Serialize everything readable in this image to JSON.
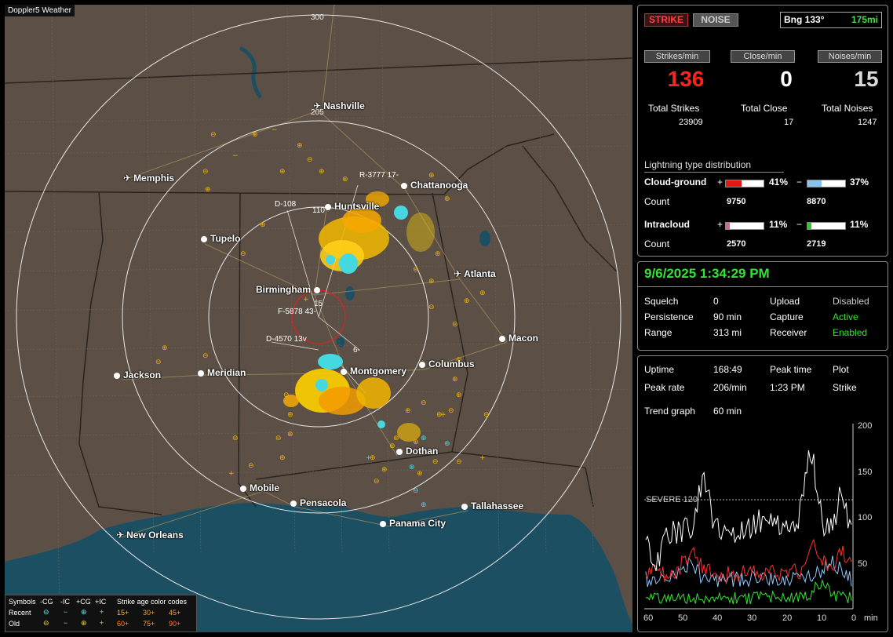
{
  "map": {
    "title": "Doppler5 Weather",
    "ring_labels": [
      "300",
      "205",
      "15"
    ],
    "cities": [
      {
        "name": "Nashville",
        "type": "airport"
      },
      {
        "name": "Memphis",
        "type": "airport"
      },
      {
        "name": "Huntsville",
        "type": "city"
      },
      {
        "name": "Chattanooga",
        "type": "city"
      },
      {
        "name": "Tupelo",
        "type": "city"
      },
      {
        "name": "Atlanta",
        "type": "airport"
      },
      {
        "name": "Birmingham",
        "type": "city"
      },
      {
        "name": "Macon",
        "type": "city"
      },
      {
        "name": "Columbus",
        "type": "city"
      },
      {
        "name": "Jackson",
        "type": "city"
      },
      {
        "name": "Meridian",
        "type": "city"
      },
      {
        "name": "Montgomery",
        "type": "city"
      },
      {
        "name": "Dothan",
        "type": "city"
      },
      {
        "name": "Mobile",
        "type": "city"
      },
      {
        "name": "Pensacola",
        "type": "city"
      },
      {
        "name": "Tallahassee",
        "type": "city"
      },
      {
        "name": "Panama City",
        "type": "city"
      },
      {
        "name": "New Orleans",
        "type": "airport"
      }
    ],
    "stations": [
      "R-3777 17-",
      "D-108",
      "110",
      "F-5878 43-",
      "D-4570 13v",
      "6-"
    ],
    "legend": {
      "title_symbols": "Symbols",
      "cols": [
        "-CG",
        "-IC",
        "+CG",
        "+IC"
      ],
      "rows": [
        "Recent",
        "Old"
      ],
      "recent_symbols": [
        "⊖",
        "−",
        "⊕",
        "+"
      ],
      "old_symbols": [
        "⊖",
        "−",
        "⊕",
        "+"
      ],
      "age_title": "Strike age color codes",
      "recent_ages": [
        "15+",
        "30+",
        "45+"
      ],
      "old_ages": [
        "60+",
        "75+",
        "90+"
      ]
    }
  },
  "status": {
    "strike_label": "STRIKE",
    "noise_label": "NOISE",
    "bearing": "Bng 133°",
    "distance": "175mi",
    "strikes_min_label": "Strikes/min",
    "close_min_label": "Close/min",
    "noises_min_label": "Noises/min",
    "strikes_min": "136",
    "close_min": "0",
    "noises_min": "15",
    "total_strikes_label": "Total Strikes",
    "total_close_label": "Total Close",
    "total_noises_label": "Total Noises",
    "total_strikes": "23909",
    "total_close": "17",
    "total_noises": "1247",
    "dist_title": "Lightning type distribution",
    "cg_label": "Cloud-ground",
    "ic_label": "Intracloud",
    "count_label": "Count",
    "plus": "+",
    "minus": "−",
    "cg_pos_pct": "41%",
    "cg_neg_pct": "37%",
    "cg_pos_count": "9750",
    "cg_neg_count": "8870",
    "ic_pos_pct": "11%",
    "ic_neg_pct": "11%",
    "ic_pos_count": "2570",
    "ic_neg_count": "2719",
    "cg_pos_fill": 0.41,
    "cg_neg_fill": 0.37,
    "ic_pos_fill": 0.11,
    "ic_neg_fill": 0.11
  },
  "settings": {
    "datetime": "9/6/2025 1:34:29 PM",
    "squelch_label": "Squelch",
    "squelch": "0",
    "persistence_label": "Persistence",
    "persistence": "90 min",
    "range_label": "Range",
    "range": "313 mi",
    "upload_label": "Upload",
    "upload": "Disabled",
    "capture_label": "Capture",
    "capture": "Active",
    "receiver_label": "Receiver",
    "receiver": "Enabled"
  },
  "trend": {
    "uptime_label": "Uptime",
    "uptime": "168:49",
    "peak_time_label": "Peak time",
    "peak_time": "1:23 PM",
    "plot_label": "Plot",
    "plot": "Strike",
    "peak_rate_label": "Peak rate",
    "peak_rate": "206/min",
    "graph_label": "Trend graph",
    "graph_span": "60 min",
    "severe_label": "SEVERE 120",
    "y_ticks": [
      "200",
      "150",
      "100",
      "50"
    ],
    "x_ticks": [
      "60",
      "50",
      "40",
      "30",
      "20",
      "10",
      "0"
    ],
    "x_unit": "min",
    "colors": {
      "total": "#ffffff",
      "cg_pos": "#ff3030",
      "cg_neg": "#90c8ff",
      "ic": "#33e233"
    }
  }
}
